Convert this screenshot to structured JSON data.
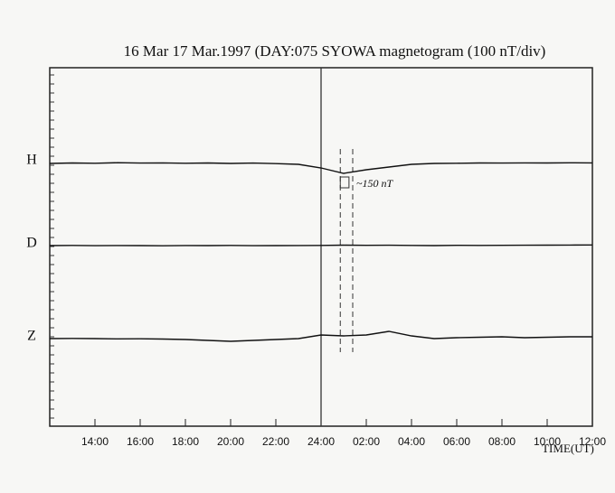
{
  "chart_data": {
    "type": "line",
    "title": "16 Mar   17 Mar.1997 (DAY:075 SYOWA   magnetogram (100 nT/div)",
    "x_label": "TIME(UT)",
    "annotation": "~150 nT",
    "x": [
      12,
      13,
      14,
      15,
      16,
      17,
      18,
      19,
      20,
      21,
      22,
      23,
      24,
      25,
      26,
      27,
      28,
      29,
      30,
      31,
      32,
      33,
      34,
      35,
      36
    ],
    "xlim": [
      12,
      36
    ],
    "xticks": [
      {
        "value": 14,
        "label": "14:00"
      },
      {
        "value": 16,
        "label": "16:00"
      },
      {
        "value": 18,
        "label": "18:00"
      },
      {
        "value": 20,
        "label": "20:00"
      },
      {
        "value": 22,
        "label": "22:00"
      },
      {
        "value": 24,
        "label": "24:00"
      },
      {
        "value": 26,
        "label": "02:00"
      },
      {
        "value": 28,
        "label": "04:00"
      },
      {
        "value": 30,
        "label": "06:00"
      },
      {
        "value": 32,
        "label": "08:00"
      },
      {
        "value": 34,
        "label": "10:00"
      },
      {
        "value": 36,
        "label": "12:00"
      }
    ],
    "event_times": [
      24.85,
      25.4
    ],
    "series": [
      {
        "name": "H",
        "color": "#111111",
        "values": [
          -10,
          -5,
          -8,
          -2,
          -6,
          -4,
          -8,
          -5,
          -10,
          -6,
          -12,
          -20,
          -60,
          -120,
          -80,
          -50,
          -20,
          -10,
          -8,
          -5,
          -6,
          -4,
          -5,
          -3,
          -4
        ]
      },
      {
        "name": "D",
        "color": "#111111",
        "values": [
          0,
          2,
          -1,
          1,
          0,
          -2,
          1,
          0,
          2,
          -1,
          0,
          1,
          2,
          5,
          3,
          4,
          2,
          0,
          3,
          2,
          3,
          4,
          5,
          6,
          7
        ]
      },
      {
        "name": "Z",
        "color": "#111111",
        "values": [
          0,
          2,
          0,
          -3,
          -2,
          -5,
          -10,
          -20,
          -30,
          -20,
          -10,
          0,
          40,
          30,
          40,
          80,
          30,
          0,
          10,
          15,
          20,
          10,
          15,
          20,
          20
        ]
      }
    ]
  }
}
